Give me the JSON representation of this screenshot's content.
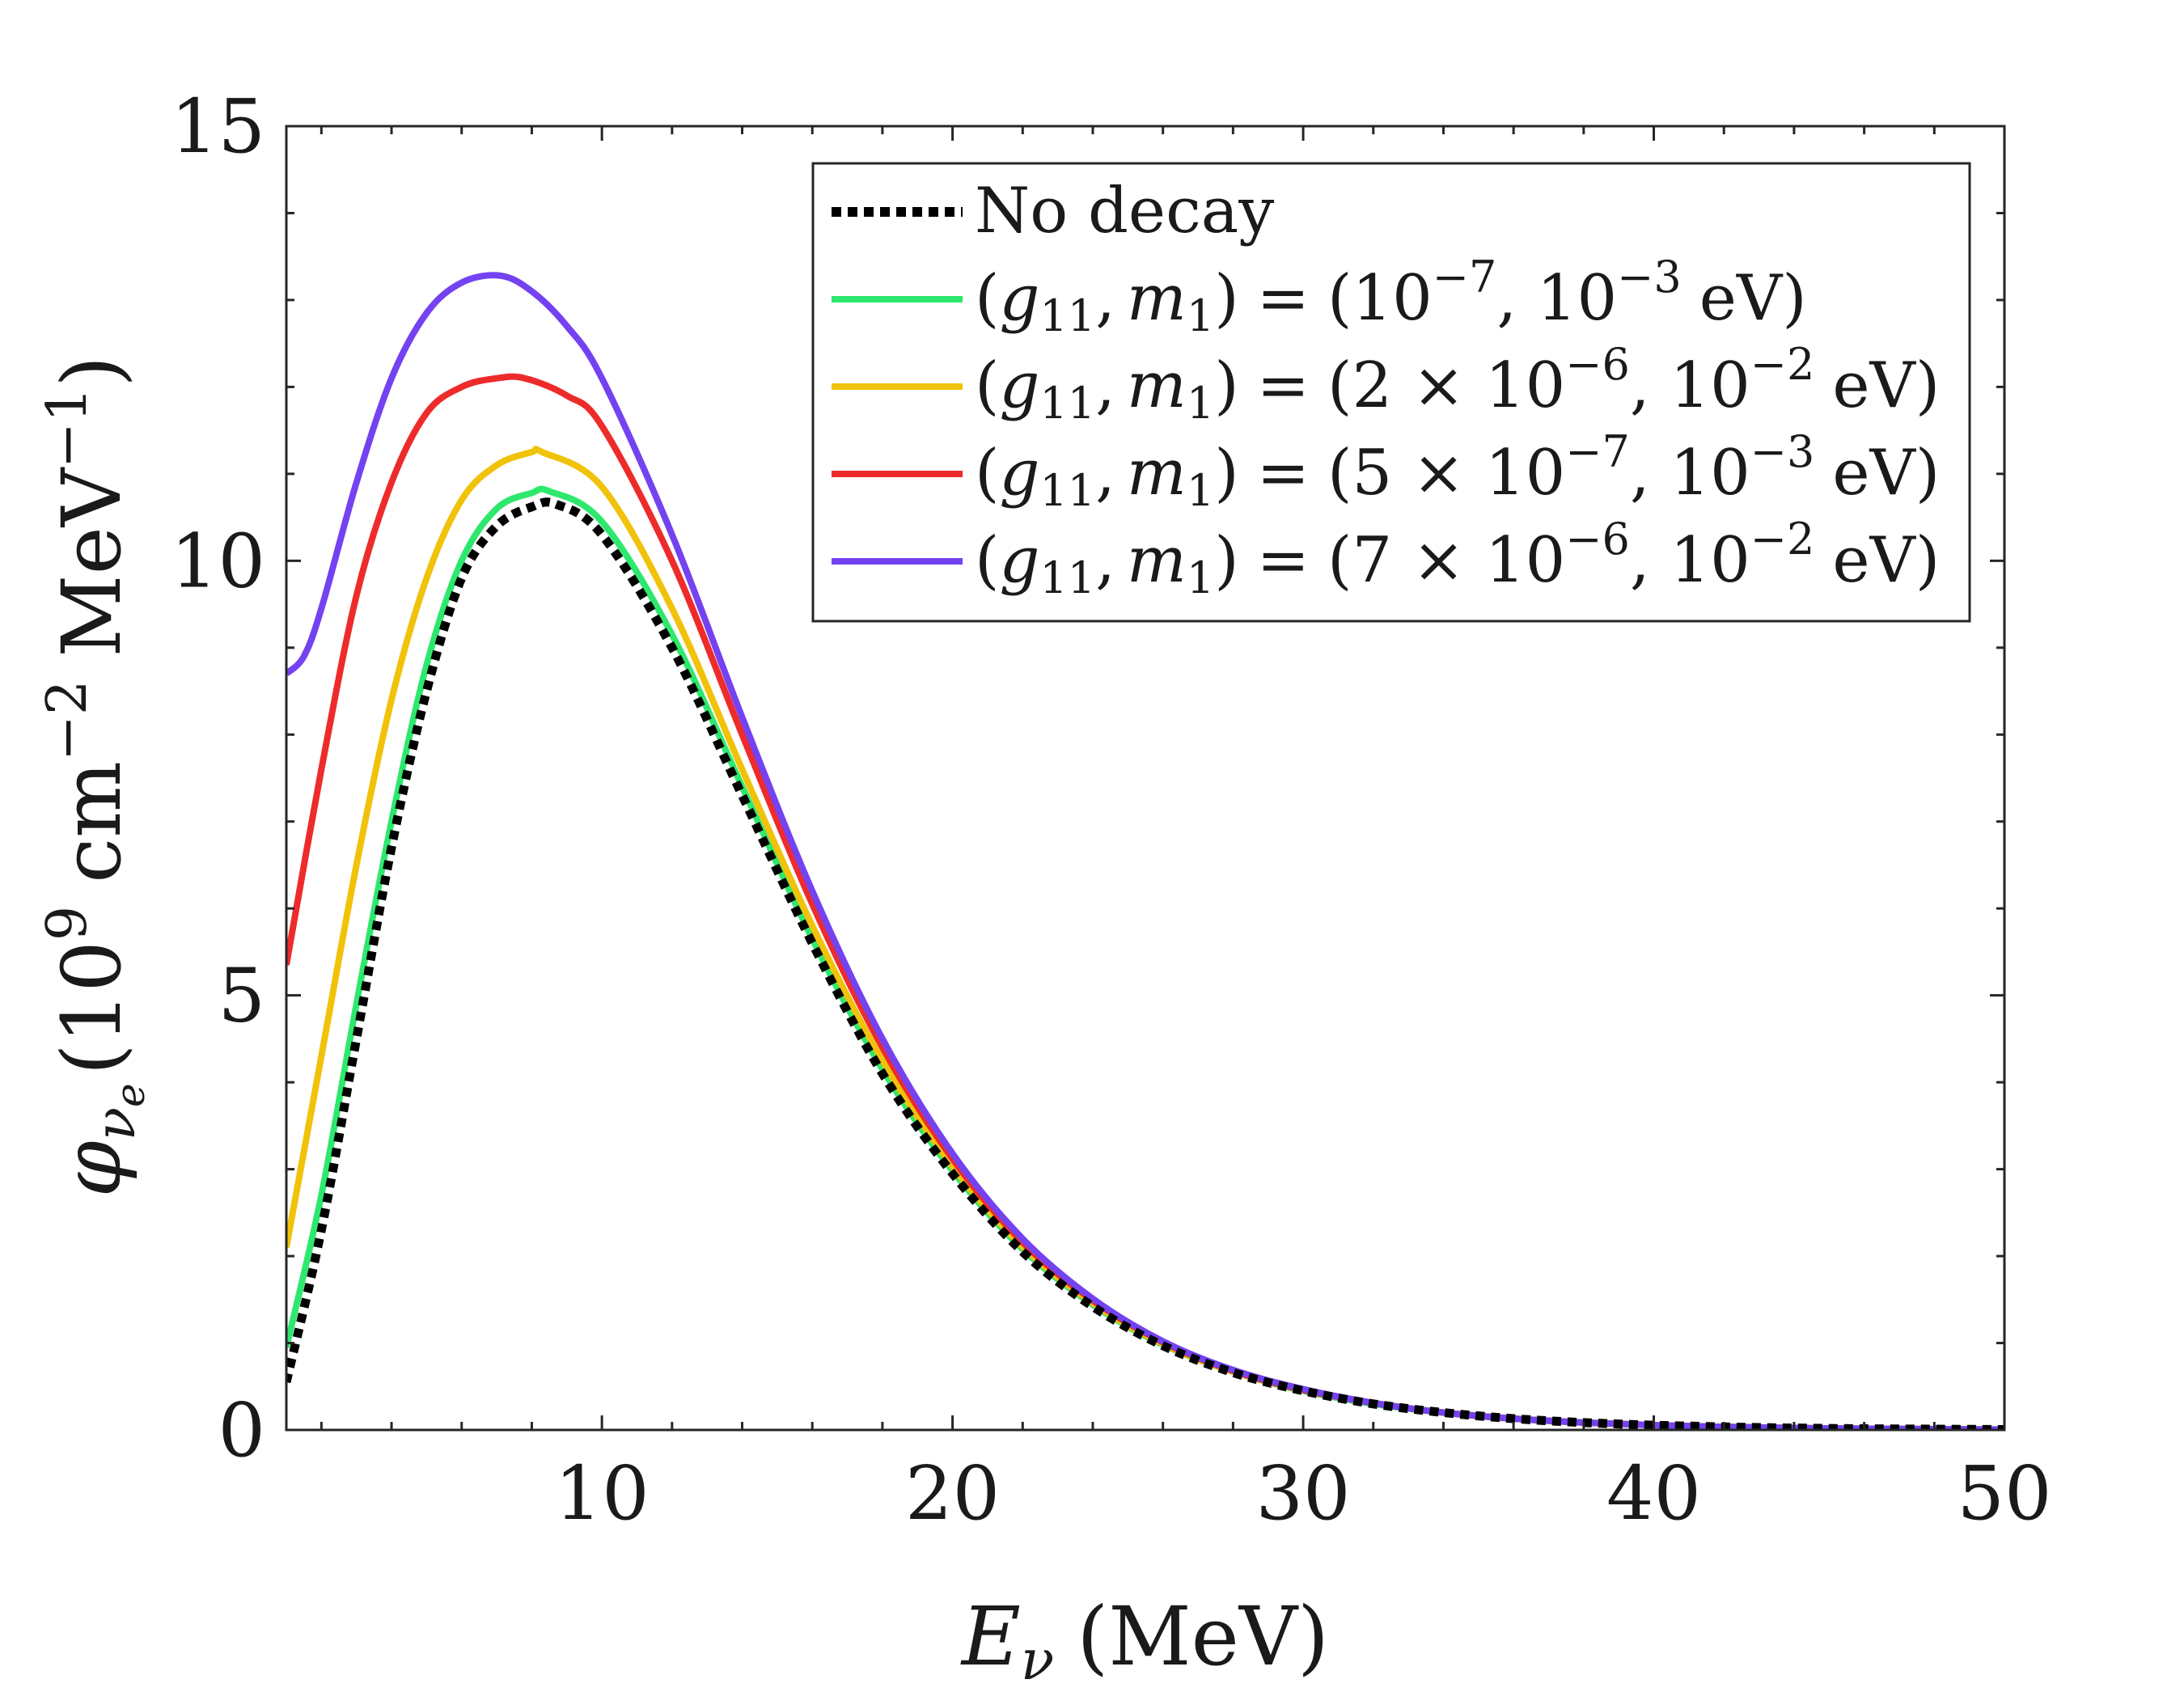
{
  "chart_data": {
    "type": "line",
    "title": "",
    "xlabel": "E_ν (MeV)",
    "ylabel": "φ_νe (10^9 cm^-2 MeV^-1)",
    "xlim": [
      1,
      50
    ],
    "ylim": [
      0,
      15
    ],
    "xticks": [
      10,
      20,
      30,
      40,
      50
    ],
    "yticks": [
      0,
      5,
      10,
      15
    ],
    "xtick_labels": [
      "10",
      "20",
      "30",
      "40",
      "50"
    ],
    "ytick_labels": [
      "0",
      "5",
      "10",
      "15"
    ],
    "legend_position": "top-right",
    "series": [
      {
        "name": "No decay",
        "color": "#000000",
        "style": "dotted",
        "x": [
          1,
          2,
          3,
          4,
          5,
          6,
          7,
          8,
          8.7,
          10,
          12,
          14,
          16,
          18,
          20,
          22,
          24,
          26,
          28,
          30,
          32,
          34,
          36,
          38,
          40,
          42,
          44,
          46,
          48,
          50
        ],
        "values": [
          0.55,
          2.3,
          4.5,
          6.7,
          8.5,
          9.8,
          10.4,
          10.62,
          10.65,
          10.3,
          9.0,
          7.3,
          5.6,
          4.1,
          2.95,
          2.05,
          1.42,
          0.97,
          0.66,
          0.45,
          0.3,
          0.2,
          0.13,
          0.085,
          0.055,
          0.035,
          0.022,
          0.014,
          0.009,
          0.005
        ]
      },
      {
        "name": "(g11, m1) = (10^-7, 10^-3 eV)",
        "color": "#2ee86e",
        "style": "solid",
        "x": [
          1,
          2,
          3,
          4,
          5,
          6,
          7,
          8,
          8.5,
          10,
          12,
          14,
          16,
          18,
          20,
          22,
          24,
          26,
          28,
          30,
          32,
          34,
          36,
          38,
          40,
          42,
          44,
          46,
          48,
          50
        ],
        "values": [
          0.95,
          2.7,
          4.9,
          7.0,
          8.8,
          10.0,
          10.6,
          10.78,
          10.8,
          10.45,
          9.15,
          7.4,
          5.65,
          4.15,
          2.98,
          2.08,
          1.44,
          0.98,
          0.67,
          0.45,
          0.3,
          0.2,
          0.13,
          0.085,
          0.055,
          0.035,
          0.022,
          0.014,
          0.009,
          0.005
        ]
      },
      {
        "name": "(g11, m1) = (2 × 10^-6, 10^-2 eV)",
        "color": "#f0c20a",
        "style": "solid",
        "x": [
          1,
          2,
          3,
          4,
          5,
          6,
          7,
          8,
          8.3,
          10,
          12,
          14,
          16,
          18,
          20,
          22,
          24,
          26,
          28,
          30,
          32,
          34,
          36,
          38,
          40,
          42,
          44,
          46,
          48,
          50
        ],
        "values": [
          2.1,
          4.3,
          6.5,
          8.4,
          9.8,
          10.7,
          11.1,
          11.25,
          11.25,
          10.85,
          9.45,
          7.6,
          5.8,
          4.25,
          3.03,
          2.11,
          1.46,
          0.99,
          0.67,
          0.46,
          0.31,
          0.2,
          0.13,
          0.085,
          0.055,
          0.035,
          0.022,
          0.014,
          0.009,
          0.005
        ]
      },
      {
        "name": "(g11, m1) = (5 × 10^-7, 10^-3 eV)",
        "color": "#ee2b2b",
        "style": "solid",
        "x": [
          1,
          2,
          3,
          4,
          5,
          6,
          7,
          7.8,
          9,
          10,
          12,
          14,
          16,
          18,
          20,
          22,
          24,
          26,
          28,
          30,
          32,
          34,
          36,
          38,
          40,
          42,
          44,
          46,
          48,
          50
        ],
        "values": [
          5.35,
          7.6,
          9.6,
          10.9,
          11.7,
          12.0,
          12.1,
          12.1,
          11.9,
          11.55,
          10.0,
          8.0,
          6.05,
          4.4,
          3.12,
          2.16,
          1.49,
          1.01,
          0.68,
          0.46,
          0.31,
          0.2,
          0.13,
          0.085,
          0.055,
          0.035,
          0.022,
          0.014,
          0.009,
          0.005
        ]
      },
      {
        "name": "(g11, m1) = (7 × 10^-6, 10^-2 eV)",
        "color": "#7442f0",
        "style": "solid",
        "x": [
          1,
          1.5,
          2,
          3,
          4,
          5,
          6,
          7.1,
          8,
          9,
          10,
          12,
          14,
          16,
          18,
          20,
          22,
          24,
          26,
          28,
          30,
          32,
          34,
          36,
          38,
          40,
          42,
          44,
          46,
          48,
          50
        ],
        "values": [
          8.7,
          8.9,
          9.45,
          10.9,
          12.1,
          12.85,
          13.2,
          13.28,
          13.1,
          12.7,
          12.1,
          10.3,
          8.2,
          6.2,
          4.5,
          3.18,
          2.2,
          1.51,
          1.02,
          0.69,
          0.47,
          0.31,
          0.2,
          0.13,
          0.085,
          0.055,
          0.035,
          0.022,
          0.014,
          0.009,
          0.005
        ]
      }
    ],
    "legend": {
      "entries": [
        {
          "prefix": "No decay",
          "coupling": "",
          "mass": "",
          "coupling_exp": "",
          "mass_exp": ""
        },
        {
          "prefix": "(g",
          "coupling": "(10",
          "coupling_exp": "−7",
          "mass": ", 10",
          "mass_exp": "−3"
        },
        {
          "prefix": "(g",
          "coupling": "(2 × 10",
          "coupling_exp": "−6",
          "mass": ", 10",
          "mass_exp": "−2"
        },
        {
          "prefix": "(g",
          "coupling": "(5 × 10",
          "coupling_exp": "−7",
          "mass": ", 10",
          "mass_exp": "−3"
        },
        {
          "prefix": "(g",
          "coupling": "(7 × 10",
          "coupling_exp": "−6",
          "mass": ", 10",
          "mass_exp": "−2"
        }
      ],
      "lhs_g": "g",
      "lhs_g_sub": "11",
      "lhs_m": "m",
      "lhs_m_sub": "1",
      "equals": "=",
      "unit": "eV)",
      "open_paren": "(",
      "close_paren": ")",
      "comma": ","
    },
    "axis_text": {
      "x_symbol": "E",
      "x_sub": "ν",
      "x_unit": "(MeV)",
      "y_symbol": "φ",
      "y_sub": "ν",
      "y_subsub": "e",
      "y_open": "(10",
      "y_exp9": "9",
      "y_cm": "cm",
      "y_exp_m2": "−2",
      "y_mev": "MeV",
      "y_exp_m1": "−1",
      "y_close": ")"
    }
  }
}
